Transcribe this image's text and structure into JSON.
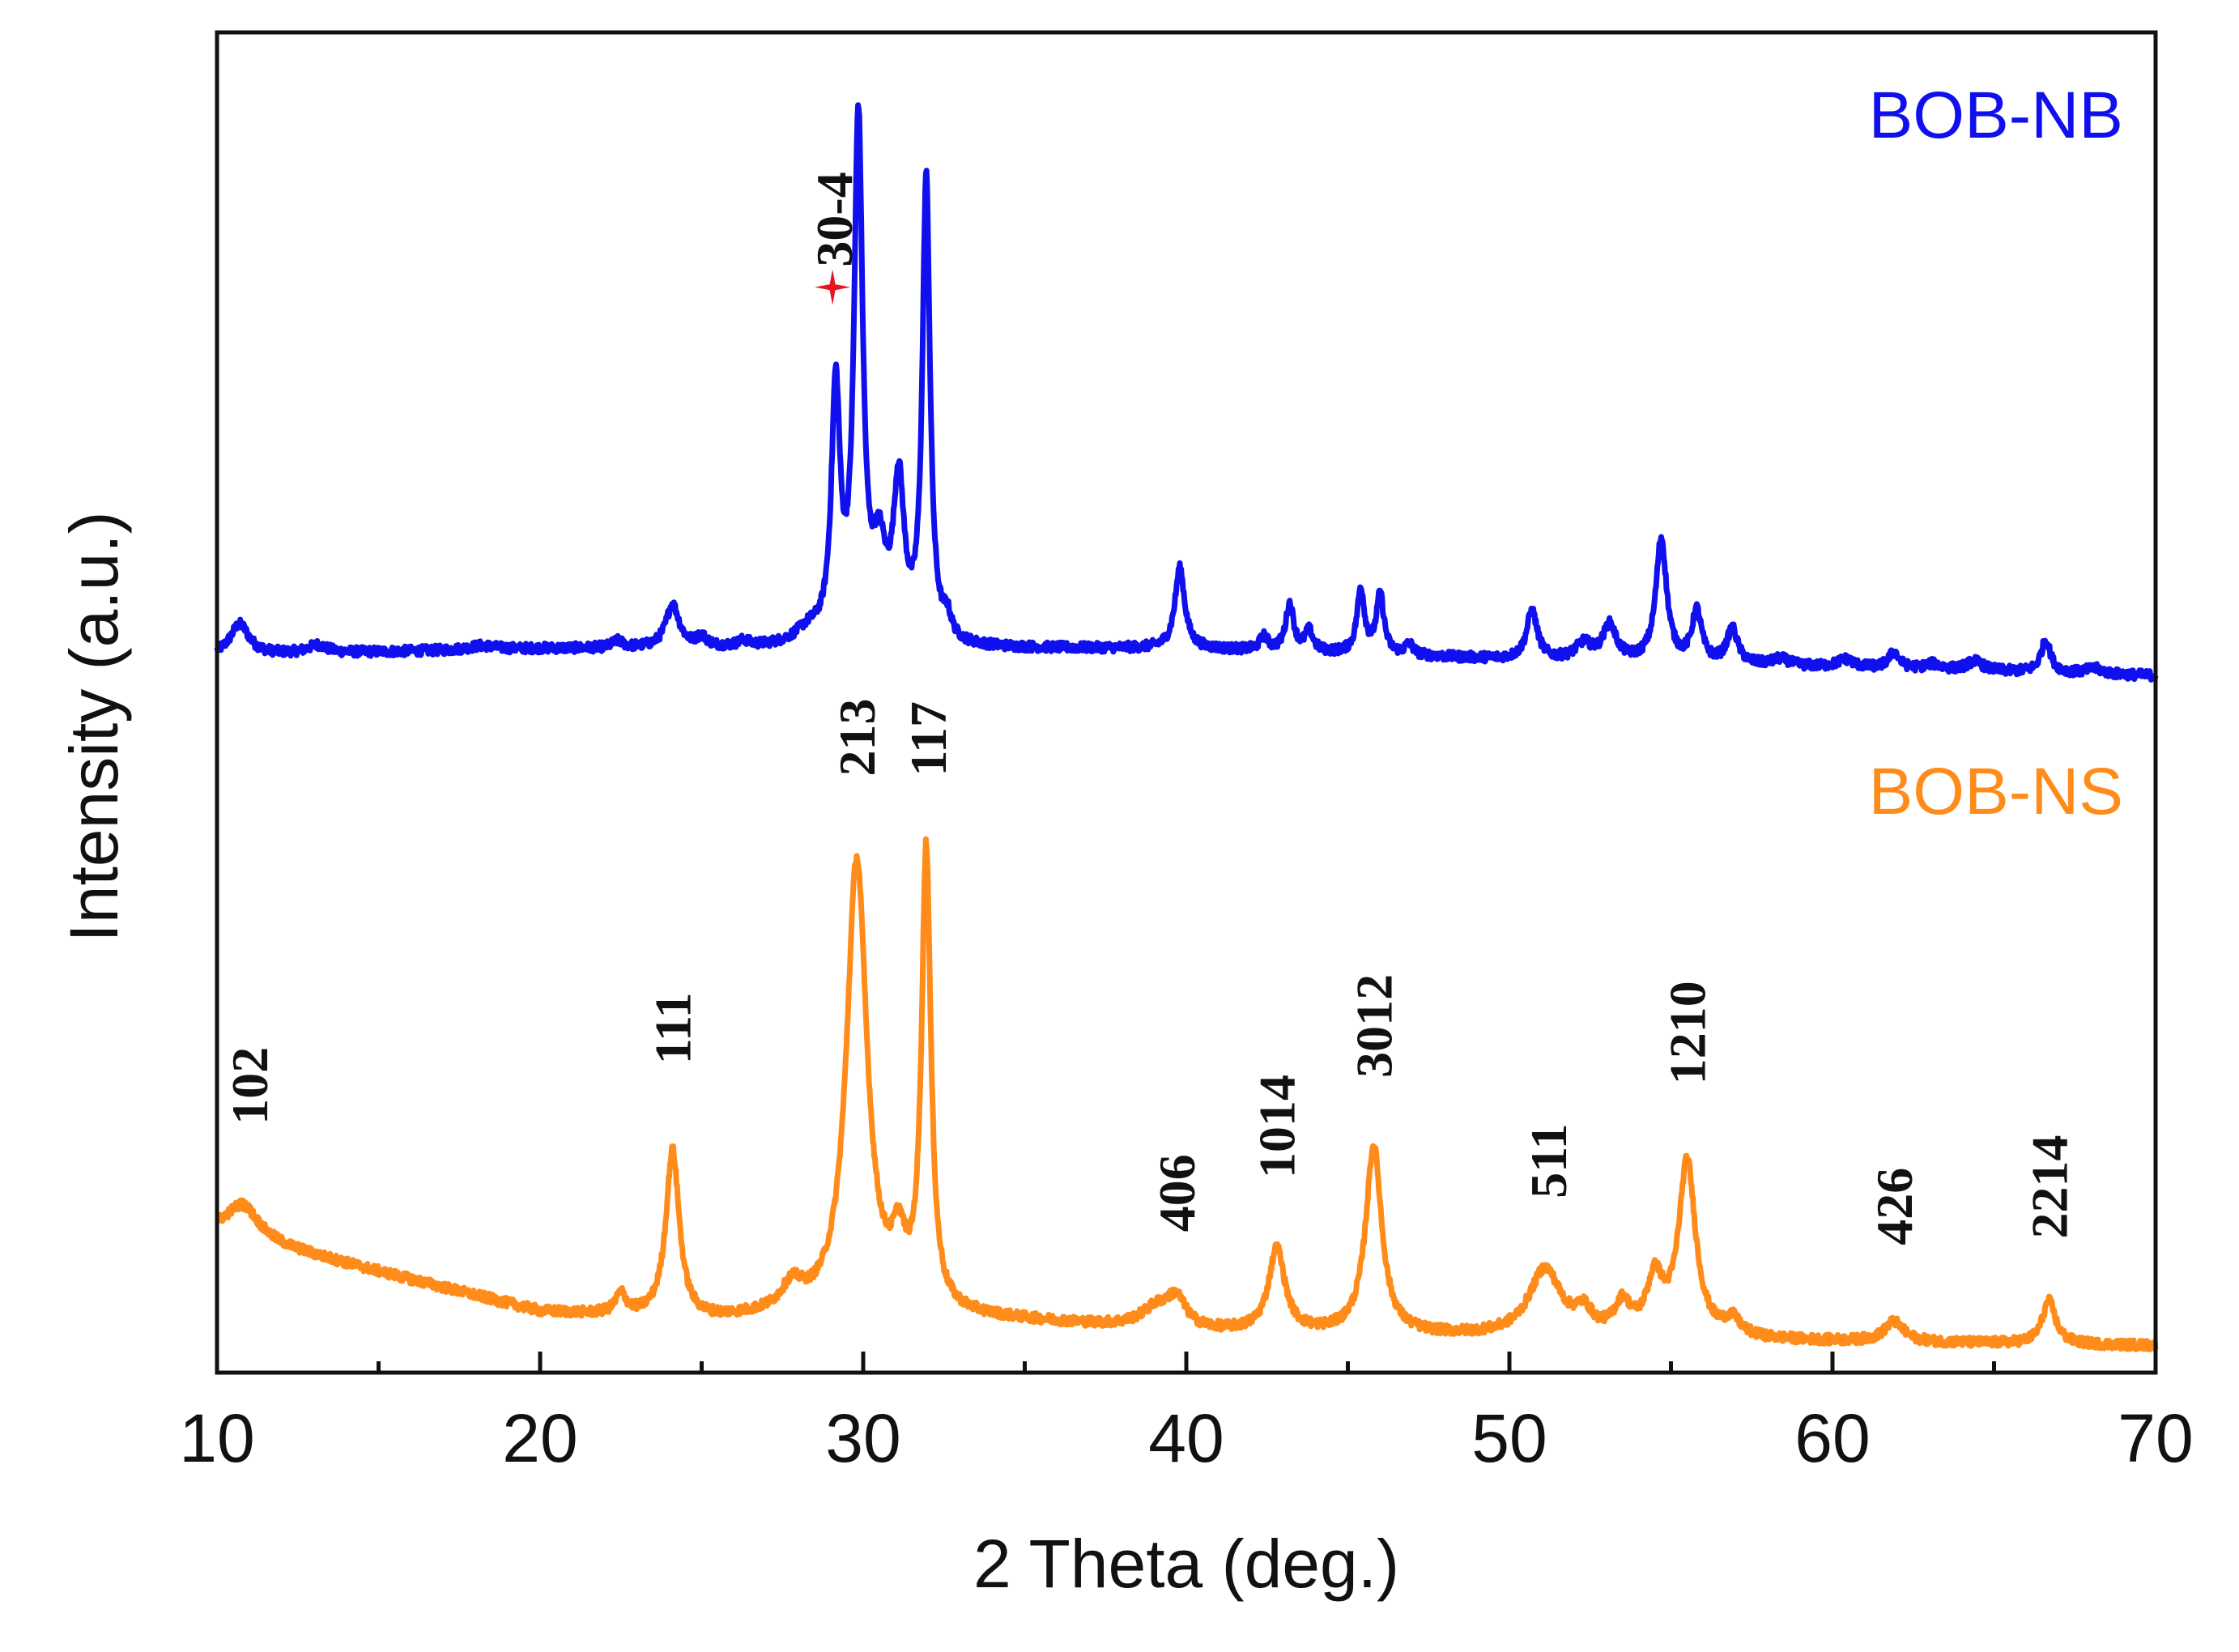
{
  "chart_data": {
    "type": "line",
    "title": "",
    "xlabel": "2 Theta (deg.)",
    "ylabel": "Intensity (a.u.)",
    "xlim": [
      10,
      70
    ],
    "ylim": [
      0,
      100
    ],
    "xticks": [
      10,
      20,
      30,
      40,
      50,
      60,
      70
    ],
    "grid": false,
    "yticks_shown": false,
    "series": [
      {
        "name": "BOB-NB",
        "color": "#1010ee",
        "baseline": [
          [
            10,
            53.5
          ],
          [
            20,
            54.0
          ],
          [
            30,
            54.0
          ],
          [
            40,
            54.0
          ],
          [
            50,
            53.2
          ],
          [
            60,
            52.6
          ],
          [
            70,
            52.0
          ]
        ],
        "peaks": [
          {
            "x": 10.7,
            "h": 2.3,
            "w": 0.35
          },
          {
            "x": 13.1,
            "h": 0.6,
            "w": 0.35
          },
          {
            "x": 18.2,
            "h": 0.3,
            "w": 0.5
          },
          {
            "x": 22.4,
            "h": 0.5,
            "w": 0.2
          },
          {
            "x": 24.1,
            "h": 3.2,
            "w": 0.25
          },
          {
            "x": 25.0,
            "h": 0.7,
            "w": 0.2
          },
          {
            "x": 26.3,
            "h": 0.4,
            "w": 0.2
          },
          {
            "x": 28.3,
            "h": 1.0,
            "w": 0.5
          },
          {
            "x": 29.15,
            "h": 18.5,
            "w": 0.16
          },
          {
            "x": 29.85,
            "h": 38.5,
            "w": 0.16
          },
          {
            "x": 30.5,
            "h": 6.0,
            "w": 0.25
          },
          {
            "x": 31.1,
            "h": 11.5,
            "w": 0.2
          },
          {
            "x": 31.95,
            "h": 34.5,
            "w": 0.14
          },
          {
            "x": 32.6,
            "h": 1.5,
            "w": 0.15
          },
          {
            "x": 39.8,
            "h": 6.0,
            "w": 0.18
          },
          {
            "x": 42.4,
            "h": 1.0,
            "w": 0.15
          },
          {
            "x": 43.2,
            "h": 3.5,
            "w": 0.15
          },
          {
            "x": 43.8,
            "h": 1.5,
            "w": 0.15
          },
          {
            "x": 45.4,
            "h": 4.8,
            "w": 0.14
          },
          {
            "x": 46.0,
            "h": 4.4,
            "w": 0.14
          },
          {
            "x": 46.9,
            "h": 0.8,
            "w": 0.15
          },
          {
            "x": 50.7,
            "h": 3.6,
            "w": 0.2
          },
          {
            "x": 52.3,
            "h": 1.2,
            "w": 0.3
          },
          {
            "x": 53.1,
            "h": 2.6,
            "w": 0.25
          },
          {
            "x": 54.7,
            "h": 9.2,
            "w": 0.2
          },
          {
            "x": 55.8,
            "h": 3.8,
            "w": 0.18
          },
          {
            "x": 56.9,
            "h": 2.6,
            "w": 0.2
          },
          {
            "x": 58.4,
            "h": 0.5,
            "w": 0.3
          },
          {
            "x": 60.4,
            "h": 0.6,
            "w": 0.3
          },
          {
            "x": 61.9,
            "h": 1.2,
            "w": 0.2
          },
          {
            "x": 63.1,
            "h": 0.4,
            "w": 0.3
          },
          {
            "x": 64.4,
            "h": 0.7,
            "w": 0.3
          },
          {
            "x": 66.6,
            "h": 2.4,
            "w": 0.18
          },
          {
            "x": 68.1,
            "h": 0.4,
            "w": 0.3
          }
        ]
      },
      {
        "name": "BOB-NS",
        "color": "#ff8c1a",
        "baseline": [
          [
            10,
            10.5
          ],
          [
            15,
            7.5
          ],
          [
            20,
            4.5
          ],
          [
            25,
            3.8
          ],
          [
            30,
            4.5
          ],
          [
            35,
            3.8
          ],
          [
            40,
            3.0
          ],
          [
            50,
            2.6
          ],
          [
            60,
            2.3
          ],
          [
            70,
            2.0
          ]
        ],
        "peaks": [
          {
            "x": 10.8,
            "h": 2.5,
            "w": 0.6
          },
          {
            "x": 22.5,
            "h": 1.5,
            "w": 0.2
          },
          {
            "x": 24.1,
            "h": 12.5,
            "w": 0.25
          },
          {
            "x": 27.8,
            "h": 1.8,
            "w": 0.4
          },
          {
            "x": 29.8,
            "h": 33.5,
            "w": 0.38
          },
          {
            "x": 31.1,
            "h": 4.0,
            "w": 0.25
          },
          {
            "x": 31.95,
            "h": 34.0,
            "w": 0.17
          },
          {
            "x": 39.1,
            "h": 1.5,
            "w": 0.6
          },
          {
            "x": 39.7,
            "h": 2.0,
            "w": 0.35
          },
          {
            "x": 42.8,
            "h": 6.2,
            "w": 0.3
          },
          {
            "x": 45.8,
            "h": 14.0,
            "w": 0.3
          },
          {
            "x": 51.1,
            "h": 5.0,
            "w": 0.6
          },
          {
            "x": 52.3,
            "h": 1.5,
            "w": 0.3
          },
          {
            "x": 53.5,
            "h": 2.2,
            "w": 0.3
          },
          {
            "x": 54.5,
            "h": 4.0,
            "w": 0.3
          },
          {
            "x": 55.5,
            "h": 13.0,
            "w": 0.32
          },
          {
            "x": 56.9,
            "h": 1.2,
            "w": 0.3
          },
          {
            "x": 61.9,
            "h": 1.5,
            "w": 0.35
          },
          {
            "x": 66.7,
            "h": 3.2,
            "w": 0.25
          }
        ]
      }
    ],
    "legend": [
      {
        "text": "BOB-NB",
        "series": "BOB-NB",
        "position": "top-right"
      },
      {
        "text": "BOB-NS",
        "series": "BOB-NS",
        "position": "right"
      }
    ],
    "annotations": [
      {
        "text": "30-4",
        "x": 29.1,
        "y": 82.5,
        "series": "BOB-NB",
        "marker": "red-star"
      },
      {
        "text": "102",
        "x": 11.0,
        "y": 18.5
      },
      {
        "text": "111",
        "x": 24.1,
        "y": 23.0
      },
      {
        "text": "213",
        "x": 29.8,
        "y": 44.5
      },
      {
        "text": "117",
        "x": 32.0,
        "y": 44.5
      },
      {
        "text": "406",
        "x": 39.7,
        "y": 10.5
      },
      {
        "text": "1014",
        "x": 42.8,
        "y": 14.5
      },
      {
        "text": "3012",
        "x": 45.8,
        "y": 22.0
      },
      {
        "text": "511",
        "x": 51.2,
        "y": 13.0
      },
      {
        "text": "1210",
        "x": 55.5,
        "y": 21.5
      },
      {
        "text": "426",
        "x": 61.9,
        "y": 9.5
      },
      {
        "text": "2214",
        "x": 66.7,
        "y": 10.0
      }
    ]
  }
}
